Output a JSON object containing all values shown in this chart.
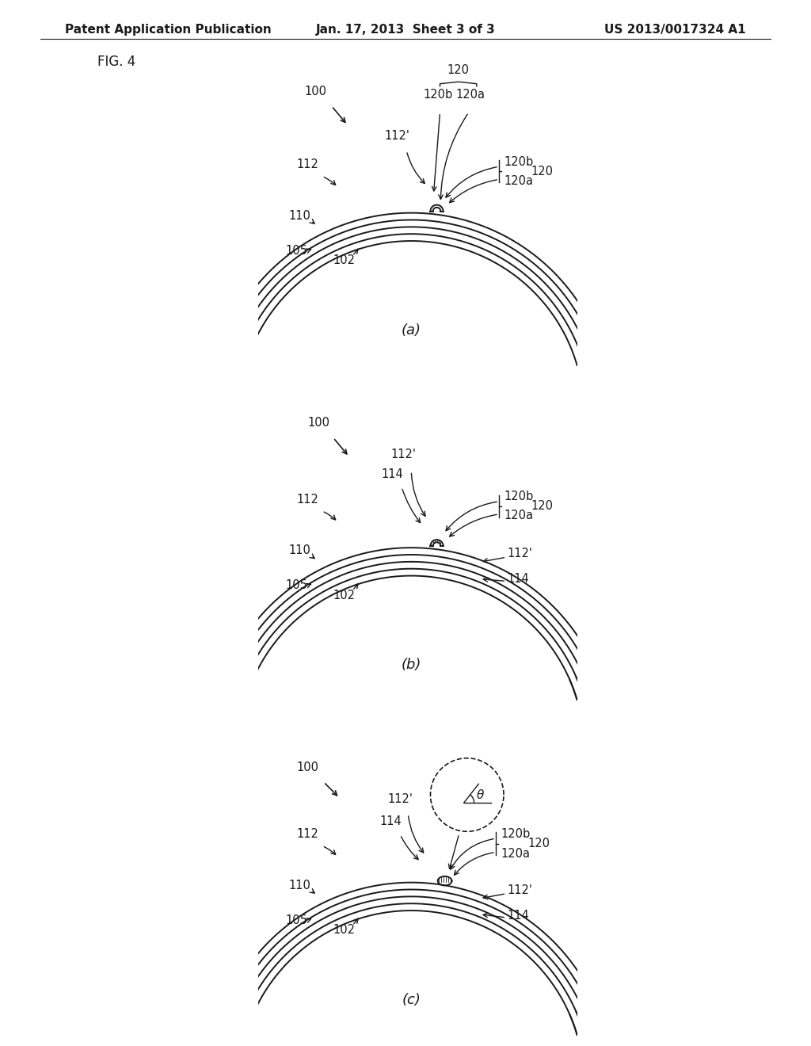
{
  "header_left": "Patent Application Publication",
  "header_center": "Jan. 17, 2013  Sheet 3 of 3",
  "header_right": "US 2013/0017324 A1",
  "fig_label": "FIG. 4",
  "subfig_labels": [
    "(a)",
    "(b)",
    "(c)"
  ],
  "bg_color": "#ffffff",
  "line_color": "#1a1a1a",
  "header_fontsize": 11,
  "label_fontsize": 10.5
}
